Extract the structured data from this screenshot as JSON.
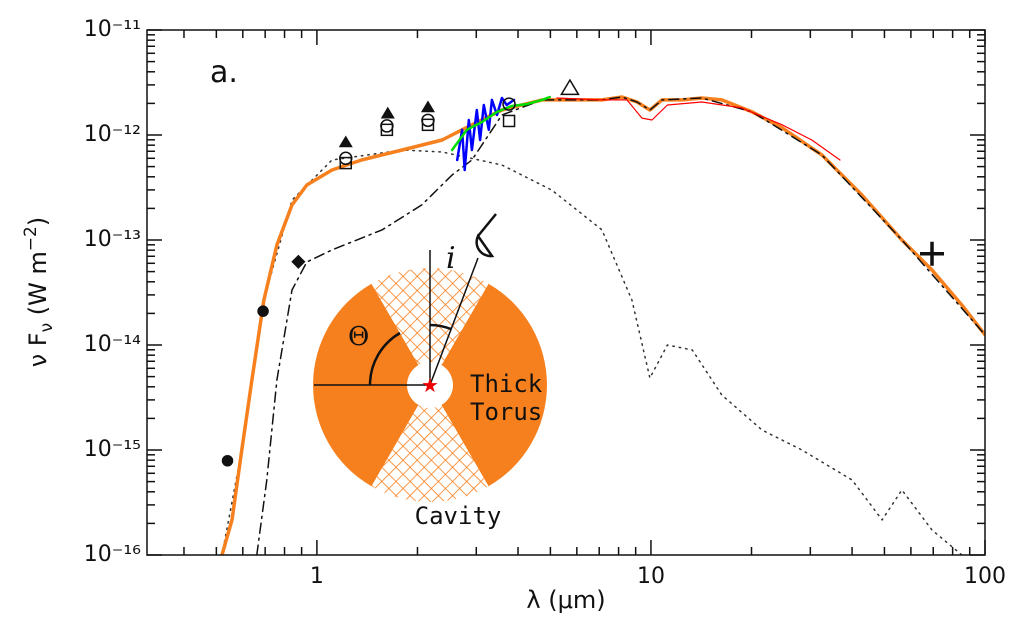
{
  "chart_data": {
    "type": "line",
    "annotation": "a.",
    "xlabel": "λ (μm)",
    "ylabel": [
      "ν F",
      "ν",
      " (W m",
      "−2",
      ")"
    ],
    "xscale": "log",
    "yscale": "log",
    "xlim": [
      0.31,
      100
    ],
    "ylim": [
      1e-16,
      1e-11
    ],
    "xticks": [
      1,
      10,
      100
    ],
    "xminorticks": [
      0.4,
      0.5,
      0.6,
      0.7,
      0.8,
      0.9,
      2,
      3,
      4,
      5,
      6,
      7,
      8,
      9,
      20,
      30,
      40,
      50,
      60,
      70,
      80,
      90
    ],
    "yticks": [
      {
        "value": 1e-16,
        "label": "10⁻¹⁶"
      },
      {
        "value": 1e-15,
        "label": "10⁻¹⁵"
      },
      {
        "value": 1e-14,
        "label": "10⁻¹⁴"
      },
      {
        "value": 1e-13,
        "label": "10⁻¹³"
      },
      {
        "value": 1e-12,
        "label": "10⁻¹²"
      },
      {
        "value": 1e-11,
        "label": "10⁻¹¹"
      }
    ],
    "yminorticks": [
      2e-16,
      3e-16,
      4e-16,
      5e-16,
      6e-16,
      7e-16,
      8e-16,
      9e-16,
      2e-15,
      3e-15,
      4e-15,
      5e-15,
      6e-15,
      7e-15,
      8e-15,
      9e-15,
      2e-14,
      3e-14,
      4e-14,
      5e-14,
      6e-14,
      7e-14,
      8e-14,
      9e-14,
      2e-13,
      3e-13,
      4e-13,
      5e-13,
      6e-13,
      7e-13,
      8e-13,
      9e-13,
      2e-12,
      3e-12,
      4e-12,
      5e-12,
      6e-12,
      7e-12,
      8e-12,
      9e-12
    ],
    "series": [
      {
        "style": "dotted",
        "color": "#333333",
        "width": 1.5,
        "x": [
          0.52,
          0.596,
          0.694,
          0.842,
          1.11,
          1.8,
          2.37,
          3.58,
          5.05,
          7.13,
          8.77,
          9.93,
          11.2,
          13.3,
          16.3,
          21.5,
          28.3,
          40.0,
          49.2,
          56.4,
          69.4,
          85.3
        ],
        "values": [
          1e-16,
          1e-15,
          2.68e-14,
          2.4e-13,
          5.78e-13,
          7.2e-13,
          6.89e-13,
          5.18e-13,
          2.99e-13,
          1.25e-13,
          2.68e-14,
          4.85e-15,
          1e-14,
          8.96e-15,
          3.34e-15,
          1.55e-15,
          1e-15,
          5.18e-16,
          2.16e-16,
          4.16e-16,
          1.73e-16,
          1e-16
        ]
      },
      {
        "style": "solid",
        "color": "#f7801e",
        "width": 3.5,
        "x": [
          0.52,
          0.557,
          0.596,
          0.639,
          0.694,
          0.759,
          0.842,
          0.933,
          1.11,
          1.36,
          1.8,
          2.37,
          2.91,
          3.58,
          4.72,
          7.13,
          8.19,
          9.08,
          9.93,
          10.8,
          12.4,
          14.2,
          16.3,
          20.1,
          24.7,
          32.5,
          42.8,
          56.4,
          69.4,
          85.3,
          100
        ],
        "values": [
          1e-16,
          2.16e-16,
          1e-15,
          4.64e-15,
          2.68e-14,
          8.96e-14,
          2.16e-13,
          3.34e-13,
          4.64e-13,
          5.78e-13,
          7.2e-13,
          8.96e-13,
          1.25e-12,
          1.73e-12,
          2.16e-12,
          2.16e-12,
          2.3e-12,
          2.06e-12,
          1.73e-12,
          2.16e-12,
          2.16e-12,
          2.25e-12,
          2.16e-12,
          1.66e-12,
          1.17e-12,
          6.45e-13,
          2.68e-13,
          1e-13,
          5.18e-14,
          2.4e-14,
          1.25e-14
        ]
      },
      {
        "style": "dashdot",
        "color": "#111111",
        "width": 1.5,
        "x": [
          0.661,
          0.708,
          0.759,
          0.842,
          0.933,
          1.11,
          1.57,
          2.06,
          2.54,
          2.91,
          3.58,
          4.72,
          7.13,
          8.19,
          9.08,
          9.93,
          10.8,
          14.2,
          20.1,
          32.5,
          56.4,
          100
        ],
        "values": [
          1e-16,
          5.18e-16,
          4.64e-15,
          3.34e-14,
          6.17e-14,
          8.04e-14,
          1.25e-13,
          2.16e-13,
          4.16e-13,
          5.78e-13,
          1.55e-12,
          2.16e-12,
          2.16e-12,
          2.3e-12,
          2.06e-12,
          1.73e-12,
          2.16e-12,
          2.25e-12,
          1.66e-12,
          6.45e-13,
          1e-13,
          1.25e-14
        ]
      },
      {
        "style": "solid",
        "color": "#ff0000",
        "width": 1.2,
        "x": [
          5.23,
          7.13,
          8.47,
          9.4,
          10.07,
          11.2,
          14.2,
          18.7,
          24.7,
          30.3,
          36.8
        ],
        "values": [
          2.25e-12,
          2.16e-12,
          2.16e-12,
          1.45e-12,
          1.39e-12,
          1.93e-12,
          2.06e-12,
          1.81e-12,
          1.25e-12,
          8.96e-13,
          5.78e-13
        ]
      },
      {
        "style": "solid",
        "color": "#0000ff",
        "width": 2.5,
        "x": [
          2.63,
          2.72,
          2.77,
          2.85,
          2.91,
          3.01,
          3.08,
          3.16,
          3.27,
          3.34,
          3.46,
          3.58,
          3.7,
          3.89
        ],
        "values": [
          5.78e-13,
          1.12e-12,
          4.64e-13,
          1.39e-12,
          7.2e-13,
          1.73e-12,
          8.96e-13,
          1.93e-12,
          1.12e-12,
          2.16e-12,
          1.55e-12,
          2.25e-12,
          1.93e-12,
          2.16e-12
        ]
      },
      {
        "style": "solid",
        "color": "#00dd00",
        "width": 2.5,
        "x": [
          2.54,
          2.81,
          3.12,
          3.46,
          3.83,
          4.25,
          4.72,
          4.98
        ],
        "values": [
          7.2e-13,
          1.12e-12,
          1.33e-12,
          1.66e-12,
          1.89e-12,
          1.97e-12,
          2.16e-12,
          2.3e-12
        ]
      }
    ],
    "points": [
      {
        "marker": "circle-filled",
        "x": [
          0.54,
          0.69
        ],
        "values": [
          7.9e-16,
          2.1e-14
        ]
      },
      {
        "marker": "diamond-filled",
        "x": [
          0.88
        ],
        "values": [
          6.2e-14
        ]
      },
      {
        "marker": "triangle-filled",
        "x": [
          1.22,
          1.63,
          2.15
        ],
        "values": [
          8.4e-13,
          1.58e-12,
          1.81e-12
        ]
      },
      {
        "marker": "square-open",
        "x": [
          1.22,
          1.62,
          2.15,
          3.76
        ],
        "values": [
          5.4e-13,
          1.12e-12,
          1.25e-12,
          1.36e-12
        ]
      },
      {
        "marker": "circle-open",
        "x": [
          1.22,
          1.62,
          2.15,
          3.76
        ],
        "values": [
          6e-13,
          1.22e-12,
          1.38e-12,
          1.97e-12
        ]
      },
      {
        "marker": "triangle-open",
        "x": [
          5.72
        ],
        "values": [
          2.74e-12
        ]
      },
      {
        "marker": "plus",
        "x": [
          69.4
        ],
        "values": [
          7.4e-14
        ]
      }
    ],
    "inset": {
      "theta": "Θ",
      "inclination": "i",
      "labels": [
        "Thick",
        "Torus"
      ],
      "cavity": "Cavity"
    }
  }
}
